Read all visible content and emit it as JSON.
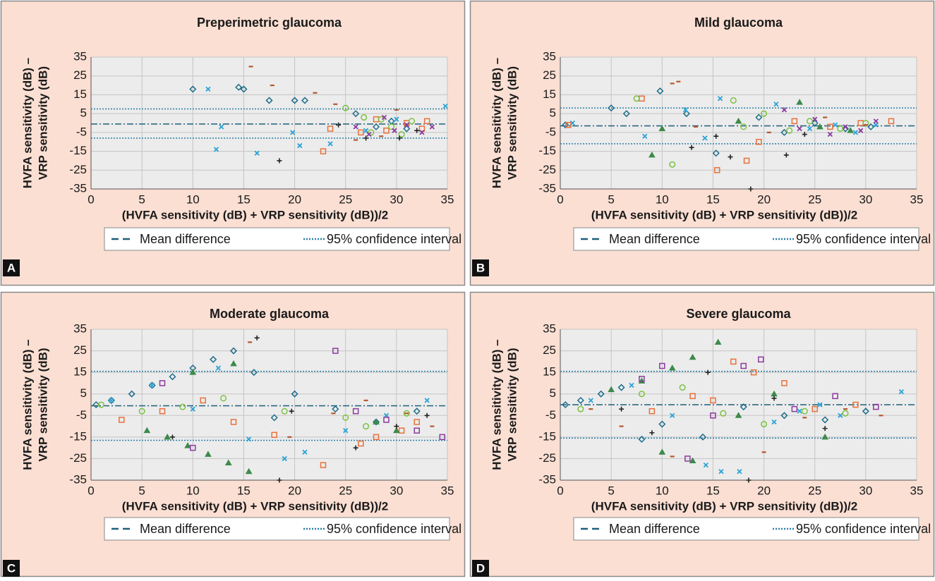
{
  "chart_data": [
    {
      "type": "scatter",
      "title": "Preperimetric glaucoma",
      "panel_label": "A",
      "xlabel": "(HVFA sensitivity (dB) + VRP sensitivity (dB))/2",
      "ylabel": [
        "HVFA sensitivity (dB) –",
        "VRP sensitivity (dB)"
      ],
      "xlim": [
        0,
        35
      ],
      "ylim": [
        -35,
        35
      ],
      "xticks": [
        0,
        5,
        10,
        15,
        20,
        25,
        30,
        35
      ],
      "yticks": [
        -35,
        -25,
        -15,
        -5,
        5,
        15,
        25,
        35
      ],
      "grid": true,
      "mean_difference": {
        "name": "Mean difference",
        "value": -0.5,
        "color": "#1f5f7a"
      },
      "confidence_interval": {
        "name": "95% confidence interval",
        "values": [
          7.5,
          -8
        ],
        "color": "#2b7fa6"
      },
      "series": [
        {
          "marker": "diamond",
          "color": "#1f6e8c",
          "x": [
            10,
            14.5,
            15,
            17.5,
            20,
            21,
            26,
            28,
            29.5,
            31
          ],
          "values": [
            18,
            19,
            18,
            12,
            12,
            12,
            5,
            -2,
            1,
            -3
          ]
        },
        {
          "marker": "cross",
          "color": "#29a3d6",
          "x": [
            11.5,
            12.3,
            12.8,
            16.3,
            19.8,
            20.5,
            23.5,
            27,
            30,
            34.8
          ],
          "values": [
            18,
            -14,
            -2,
            -16,
            -5,
            -12,
            -11,
            -4,
            2,
            9
          ]
        },
        {
          "marker": "square",
          "color": "#e8703a",
          "x": [
            22.8,
            23.5,
            26.5,
            28,
            29,
            31,
            32.5,
            33
          ],
          "values": [
            -15,
            -3,
            -5,
            2,
            -4,
            0,
            -3,
            1
          ]
        },
        {
          "marker": "circle",
          "color": "#7cc142",
          "x": [
            25,
            26.8,
            27.5,
            28.5,
            29.5,
            30.5,
            31.5
          ],
          "values": [
            8,
            3,
            -5,
            2,
            -2,
            -6,
            1
          ]
        },
        {
          "marker": "dash",
          "color": "#b5562e",
          "x": [
            15.7,
            17.8,
            22,
            24,
            26,
            28.5,
            30
          ],
          "values": [
            30,
            20,
            16,
            10,
            -9,
            -7,
            7
          ]
        },
        {
          "marker": "cross",
          "color": "#8b3a9e",
          "x": [
            26,
            27.3,
            28.8,
            29.8,
            31,
            32.5,
            33.5
          ],
          "values": [
            -2,
            -6,
            3,
            -4,
            -1,
            -5,
            -2
          ]
        },
        {
          "marker": "plus",
          "color": "#222222",
          "x": [
            18.5,
            24.3,
            27,
            30.3,
            32
          ],
          "values": [
            -20,
            -1,
            -8,
            -8,
            -4
          ]
        }
      ]
    },
    {
      "type": "scatter",
      "title": "Mild glaucoma",
      "panel_label": "B",
      "xlabel": "(HVFA sensitivity (dB) + VRP sensitivity (dB))/2",
      "ylabel": [
        "HVFA sensitivity (dB) –",
        "VRP sensitivity (dB)"
      ],
      "xlim": [
        0,
        35
      ],
      "ylim": [
        -35,
        35
      ],
      "xticks": [
        0,
        5,
        10,
        15,
        20,
        25,
        30,
        35
      ],
      "yticks": [
        -35,
        -25,
        -15,
        -5,
        5,
        15,
        25,
        35
      ],
      "grid": true,
      "mean_difference": {
        "name": "Mean difference",
        "value": -1.5,
        "color": "#1f5f7a"
      },
      "confidence_interval": {
        "name": "95% confidence interval",
        "values": [
          8,
          -11
        ],
        "color": "#2b7fa6"
      },
      "series": [
        {
          "marker": "diamond",
          "color": "#1f6e8c",
          "x": [
            0.5,
            5,
            6.5,
            9.8,
            12.4,
            15.3,
            19.5,
            22,
            25,
            28,
            30.5
          ],
          "values": [
            -1,
            8,
            5,
            17,
            5,
            -16,
            3,
            -5,
            0,
            -3,
            -2
          ]
        },
        {
          "marker": "cross",
          "color": "#29a3d6",
          "x": [
            1.2,
            8.3,
            12.3,
            14.2,
            15.7,
            21.2,
            24.5,
            27,
            29,
            31
          ],
          "values": [
            0,
            -7,
            7,
            -8,
            13,
            10,
            -3,
            -1,
            -5,
            -1
          ]
        },
        {
          "marker": "square",
          "color": "#e8703a",
          "x": [
            0.8,
            8,
            15.4,
            18.3,
            19.5,
            23,
            26.5,
            29.5,
            32.5
          ],
          "values": [
            -1,
            13,
            -25,
            -20,
            -10,
            1,
            -2,
            0,
            1
          ]
        },
        {
          "marker": "circle",
          "color": "#7cc142",
          "x": [
            7.5,
            11,
            17,
            18,
            20,
            22.5,
            24.5,
            27.5,
            30
          ],
          "values": [
            13,
            -22,
            12,
            -2,
            5,
            -4,
            1,
            -3,
            0
          ]
        },
        {
          "marker": "triangle",
          "color": "#3d8a4a",
          "x": [
            9,
            10,
            17.5,
            23.5,
            25.5,
            28.5
          ],
          "values": [
            -17,
            -3,
            1,
            11,
            -2,
            -4
          ]
        },
        {
          "marker": "cross",
          "color": "#8b3a9e",
          "x": [
            22,
            23.5,
            25,
            26.5,
            28,
            29.5,
            31
          ],
          "values": [
            7,
            -3,
            2,
            -6,
            -2,
            -4,
            1
          ]
        },
        {
          "marker": "plus",
          "color": "#222222",
          "x": [
            12.9,
            15.3,
            16.7,
            18.7,
            22.2,
            24
          ],
          "values": [
            -13,
            -7,
            -18,
            -35,
            -17,
            -6
          ]
        },
        {
          "marker": "dash",
          "color": "#b5562e",
          "x": [
            11,
            11.6,
            13.3,
            20.5,
            26,
            30
          ],
          "values": [
            21,
            22,
            -2,
            -5,
            3,
            -1
          ]
        }
      ]
    },
    {
      "type": "scatter",
      "title": "Moderate glaucoma",
      "panel_label": "C",
      "xlabel": "(HVFA sensitivity (dB) + VRP sensitivity (dB))/2",
      "ylabel": [
        "HVFA sensitivity (dB) –",
        "VRP sensitivity (dB)"
      ],
      "xlim": [
        0,
        35
      ],
      "ylim": [
        -35,
        35
      ],
      "xticks": [
        0,
        5,
        10,
        15,
        20,
        25,
        30,
        35
      ],
      "yticks": [
        -35,
        -25,
        -15,
        -5,
        5,
        15,
        25,
        35
      ],
      "grid": true,
      "mean_difference": {
        "name": "Mean difference",
        "value": -0.5,
        "color": "#1f5f7a"
      },
      "confidence_interval": {
        "name": "95% confidence interval",
        "values": [
          15.5,
          -16.5
        ],
        "color": "#2b7fa6"
      },
      "series": [
        {
          "marker": "diamond",
          "color": "#1f6e8c",
          "x": [
            0.5,
            2,
            4,
            6,
            8,
            10,
            12,
            14,
            16,
            18,
            20,
            24,
            28,
            32
          ],
          "values": [
            0,
            2,
            5,
            9,
            13,
            17,
            21,
            25,
            15,
            -6,
            5,
            -2,
            -8,
            -3
          ]
        },
        {
          "marker": "cross",
          "color": "#29a3d6",
          "x": [
            2,
            6,
            10,
            12.5,
            15.5,
            19,
            21,
            25,
            29,
            33
          ],
          "values": [
            2,
            9,
            -2,
            17,
            -16,
            -25,
            -22,
            -12,
            -5,
            2
          ]
        },
        {
          "marker": "square",
          "color": "#e8703a",
          "x": [
            3,
            7,
            11,
            14,
            18,
            22.8,
            26.5,
            28,
            30.5,
            32
          ],
          "values": [
            -7,
            -3,
            2,
            -8,
            -14,
            -28,
            -18,
            -15,
            -12,
            -8
          ]
        },
        {
          "marker": "circle",
          "color": "#7cc142",
          "x": [
            1,
            5,
            9,
            13,
            19,
            25,
            27,
            31
          ],
          "values": [
            0,
            -3,
            -1,
            3,
            -3,
            -6,
            -10,
            -4
          ]
        },
        {
          "marker": "triangle",
          "color": "#3d8a4a",
          "x": [
            5.5,
            7.5,
            9.5,
            11.5,
            13.5,
            15.5,
            10,
            14,
            28,
            30
          ],
          "values": [
            -12,
            -15,
            -19,
            -23,
            -27,
            -31,
            15,
            19,
            -8,
            -12
          ]
        },
        {
          "marker": "square",
          "color": "#8b3a9e",
          "x": [
            7,
            10,
            24,
            26,
            29,
            32,
            34.5
          ],
          "values": [
            10,
            -20,
            25,
            -3,
            -7,
            -12,
            -15
          ]
        },
        {
          "marker": "plus",
          "color": "#222222",
          "x": [
            8,
            16.3,
            18.5,
            19.7,
            26,
            30,
            33
          ],
          "values": [
            -15,
            31,
            -35,
            -3,
            -20,
            -10,
            -5
          ]
        },
        {
          "marker": "dash",
          "color": "#b5562e",
          "x": [
            15.6,
            19.5,
            23.8,
            27,
            31,
            33.5
          ],
          "values": [
            29,
            -15,
            -4,
            2,
            -4,
            -10
          ]
        }
      ]
    },
    {
      "type": "scatter",
      "title": "Severe glaucoma",
      "panel_label": "D",
      "xlabel": "(HVFA sensitivity (dB) + VRP sensitivity (dB))/2",
      "ylabel": [
        "HVFA sensitivity (dB) –",
        "VRP sensitivity (dB)"
      ],
      "xlim": [
        0,
        35
      ],
      "ylim": [
        -35,
        35
      ],
      "xticks": [
        0,
        5,
        10,
        15,
        20,
        25,
        30,
        35
      ],
      "yticks": [
        -35,
        -25,
        -15,
        -5,
        5,
        15,
        25,
        35
      ],
      "grid": true,
      "mean_difference": {
        "name": "Mean difference",
        "value": 0,
        "color": "#1f5f7a"
      },
      "confidence_interval": {
        "name": "95% confidence interval",
        "values": [
          15.5,
          -15.5
        ],
        "color": "#2b7fa6"
      },
      "series": [
        {
          "marker": "diamond",
          "color": "#1f6e8c",
          "x": [
            0.5,
            2,
            4,
            6,
            8,
            10,
            14,
            18,
            22,
            26,
            30
          ],
          "values": [
            0,
            2,
            5,
            8,
            -16,
            -9,
            -15,
            -1,
            -5,
            -7,
            -3
          ]
        },
        {
          "marker": "cross",
          "color": "#29a3d6",
          "x": [
            3,
            7,
            11,
            14.3,
            15.8,
            17.6,
            21,
            23.5,
            25.5,
            27.5,
            33.5
          ],
          "values": [
            2,
            9,
            -5,
            -28,
            -31,
            -31,
            -8,
            -3,
            0,
            -5,
            6
          ]
        },
        {
          "marker": "square",
          "color": "#e8703a",
          "x": [
            9,
            13,
            15,
            17,
            19,
            22,
            25,
            29
          ],
          "values": [
            -3,
            4,
            2,
            20,
            15,
            10,
            -2,
            0
          ]
        },
        {
          "marker": "circle",
          "color": "#7cc142",
          "x": [
            2,
            8,
            12,
            16,
            20,
            24,
            28
          ],
          "values": [
            -2,
            5,
            8,
            -4,
            -9,
            -3,
            -4
          ]
        },
        {
          "marker": "triangle",
          "color": "#3d8a4a",
          "x": [
            5,
            8,
            11,
            13,
            15.5,
            10,
            13,
            17.5,
            21,
            26
          ],
          "values": [
            7,
            11,
            17,
            22,
            29,
            -22,
            -26,
            -5,
            5,
            -15
          ]
        },
        {
          "marker": "square",
          "color": "#8b3a9e",
          "x": [
            8,
            10,
            12.5,
            15,
            18,
            19.7,
            23,
            27,
            31
          ],
          "values": [
            12,
            18,
            -25,
            -5,
            18,
            21,
            -2,
            4,
            -1
          ]
        },
        {
          "marker": "plus",
          "color": "#222222",
          "x": [
            6,
            9,
            14.5,
            18.5,
            21,
            26
          ],
          "values": [
            -2,
            -13,
            15,
            -35,
            3,
            -11
          ]
        },
        {
          "marker": "dash",
          "color": "#b5562e",
          "x": [
            3,
            6,
            11,
            20,
            24,
            28,
            31.5
          ],
          "values": [
            -2,
            -10,
            -24,
            -22,
            -6,
            -2,
            -5
          ]
        }
      ]
    }
  ]
}
